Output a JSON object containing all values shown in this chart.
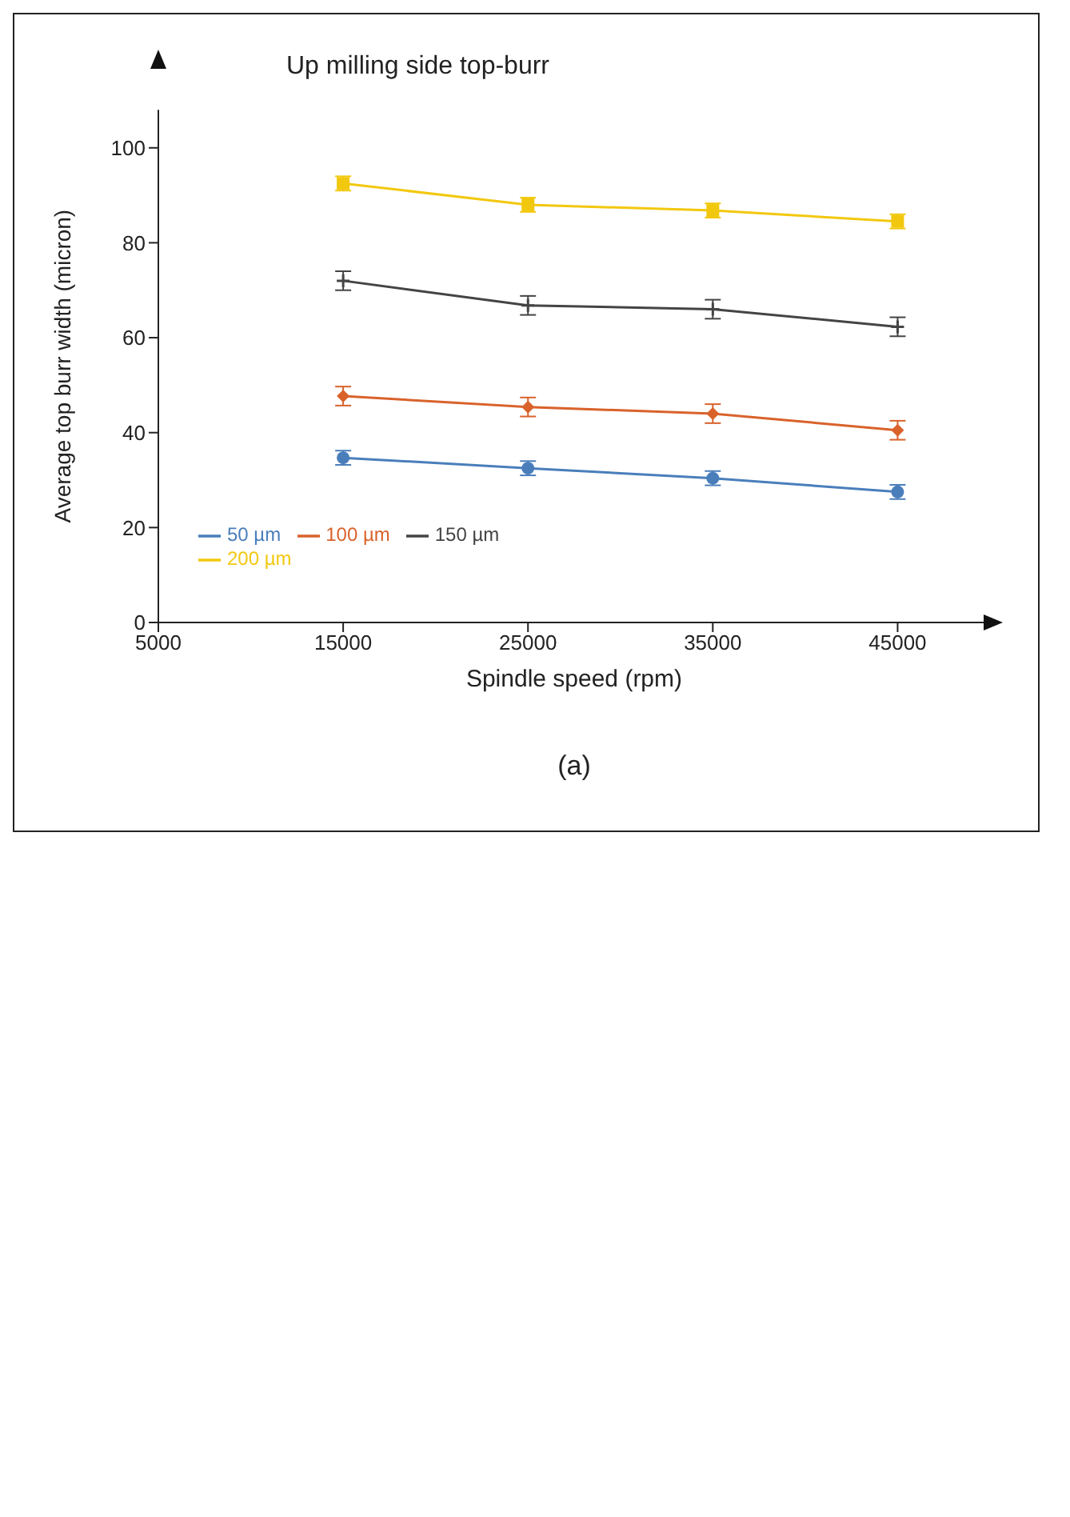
{
  "chart_data": {
    "type": "line",
    "title": "Up milling side top-burr",
    "xlabel": "Spindle speed (rpm)",
    "ylabel": "Average top burr width (micron)",
    "annotations": [
      "(a)"
    ],
    "x": [
      15000,
      25000,
      35000,
      45000
    ],
    "xlim": [
      5000,
      50000
    ],
    "xticks": [
      5000,
      15000,
      25000,
      35000,
      45000
    ],
    "ylim": [
      0,
      108
    ],
    "yticks": [
      0,
      20,
      40,
      60,
      80,
      100
    ],
    "grid": false,
    "legend": "bottom left",
    "line_style": "solid",
    "series": [
      {
        "name": "50 µm",
        "color": "#4a7ebb",
        "marker": "circle",
        "values": [
          34.7,
          32.5,
          30.4,
          27.5
        ],
        "errors": [
          1.5,
          1.5,
          1.5,
          1.5
        ]
      },
      {
        "name": "100 µm",
        "color": "#d9622b",
        "marker": "diamond",
        "values": [
          47.7,
          45.4,
          44,
          40.5
        ],
        "errors": [
          2,
          2,
          2,
          2
        ]
      },
      {
        "name": "150 µm",
        "color": "#444444",
        "marker": "cross",
        "values": [
          72,
          66.8,
          66,
          62.3
        ],
        "errors": [
          2,
          2,
          2,
          2
        ]
      },
      {
        "name": "200 µm",
        "color": "#f2c80f",
        "marker": "square",
        "values": [
          92.5,
          88,
          86.8,
          84.5
        ],
        "errors": [
          1.5,
          1.5,
          1.5,
          1.5
        ]
      }
    ]
  }
}
